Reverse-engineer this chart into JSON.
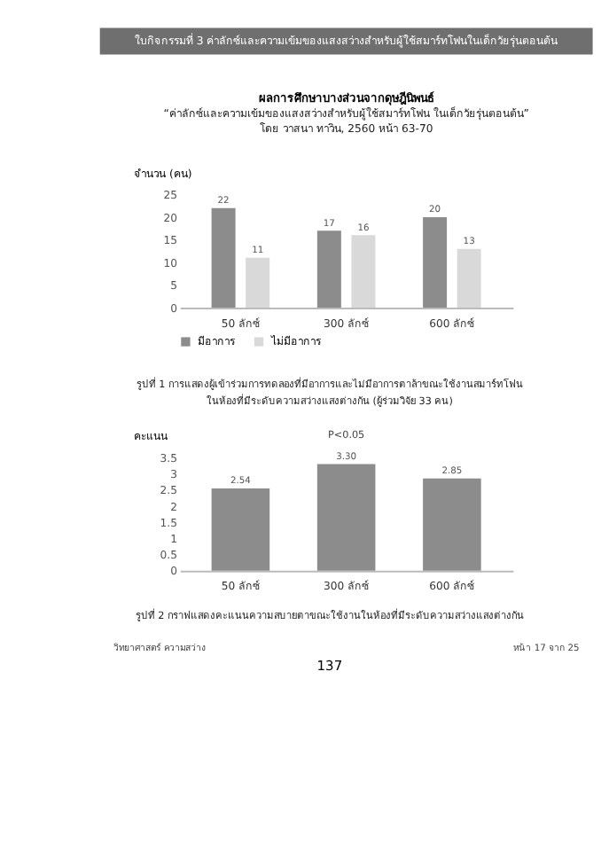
{
  "chart_data": [
    {
      "type": "bar",
      "title": "ผลการศึกษาบางส่วนจากดุษฎีนิพนธ์",
      "subtitle": "“ค่าลักซ์และความเข้มของแสงสว่างสำหรับผู้ใช้สมาร์ทโฟน ในเด็กวัยรุ่นตอนต้น”\nโดย วาสนา ทาวิน, 2560 หน้า 63-70",
      "ylabel": "จำนวน (คน)",
      "categories": [
        "50 ลักซ์",
        "300 ลักซ์",
        "600 ลักซ์"
      ],
      "series": [
        {
          "name": "มีอาการ",
          "color": "#8c8c8c",
          "values": [
            22,
            17,
            20
          ]
        },
        {
          "name": "ไม่มีอาการ",
          "color": "#d9d9d9",
          "values": [
            11,
            16,
            13
          ]
        }
      ],
      "ylim": [
        0,
        25
      ],
      "yticks": [
        0,
        5,
        10,
        15,
        20,
        25
      ],
      "grid": false,
      "legend": "bottom",
      "data_labels": true,
      "annotations": [
        "ใบกิจกรรมที่ 3 ค่าลักซ์และความเข้มของแสงสว่างสำหรับผู้ใช้สมาร์ทโฟนในเด็กวัยรุ่นตอนต้น",
        "รูปที่ 1 การแสดงผู้เข้าร่วมการทดลองที่มีอาการและไม่มีอาการตาล้าขณะใช้งานสมาร์ทโฟน\nในห้องที่มีระดับความสว่างแสงต่างกัน (ผู้ร่วมวิจัย 33 คน)"
      ]
    },
    {
      "type": "bar",
      "ylabel": "คะแนน",
      "categories": [
        "50 ลักซ์",
        "300 ลักซ์",
        "600 ลักซ์"
      ],
      "series": [
        {
          "color": "#8c8c8c",
          "values": [
            2.54,
            3.3,
            2.85
          ],
          "value_labels": [
            "2.54",
            "3.30",
            "2.85"
          ]
        }
      ],
      "ylim": [
        0,
        3.5
      ],
      "yticks": [
        0,
        0.5,
        1,
        1.5,
        2,
        2.5,
        3,
        3.5
      ],
      "grid": false,
      "annotations": [
        "P<0.05",
        "รูปที่ 2 กราฟแสดงคะแนนความสบายตาขณะใช้งานในห้องที่มีระดับความสว่างแสงต่างกัน",
        "วิทยาศาสตร์ ความสว่าง",
        "หน้า 17 จาก 25",
        "137"
      ]
    }
  ]
}
